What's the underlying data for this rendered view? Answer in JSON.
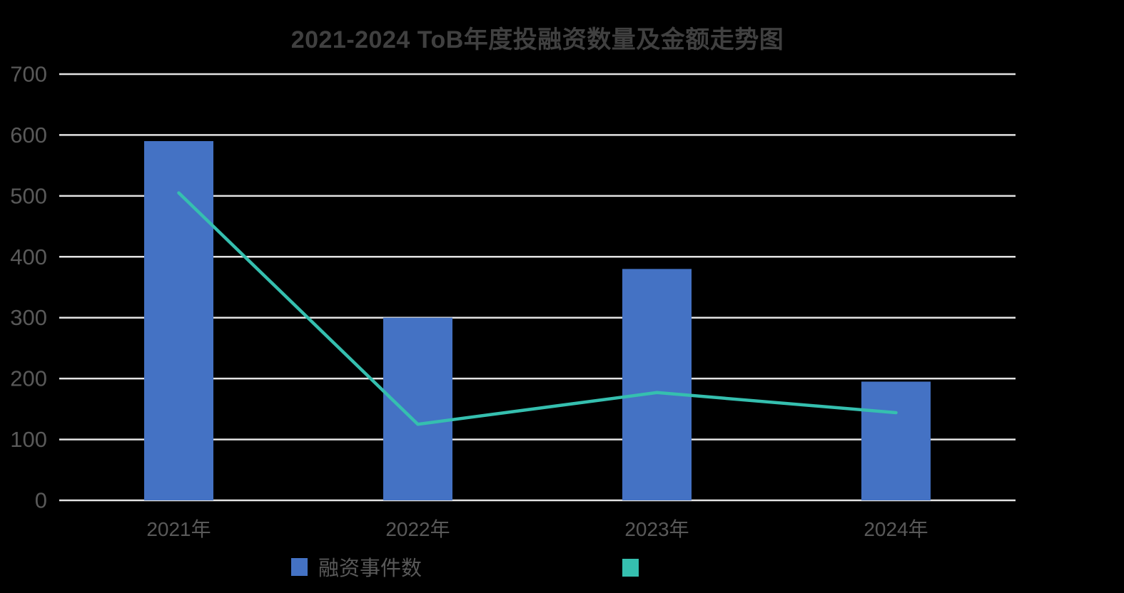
{
  "chart_data": {
    "type": "combo",
    "title": "2021-2024 ToB年度投融资数量及金额走势图",
    "categories": [
      "2021年",
      "2022年",
      "2023年",
      "2024年"
    ],
    "series": [
      {
        "name": "融资事件数",
        "type": "bar",
        "values": [
          590,
          300,
          380,
          195
        ],
        "color": "#4472C4"
      },
      {
        "name": "",
        "type": "line",
        "values": [
          505,
          125,
          177,
          144
        ],
        "color": "#35BFAF"
      }
    ],
    "xlabel": "",
    "ylabel": "",
    "ylim": [
      0,
      700
    ],
    "y_ticks": [
      "0",
      "100",
      "200",
      "300",
      "400",
      "500",
      "600",
      "700"
    ],
    "grid": "horizontal",
    "legend_position": "bottom"
  },
  "colors": {
    "background": "#000000",
    "title_text": "#404040",
    "axis_text": "#595959",
    "legend_text": "#595959",
    "gridline": "#E3E3E3",
    "bar": "#4472C4",
    "line": "#35BFAF"
  }
}
